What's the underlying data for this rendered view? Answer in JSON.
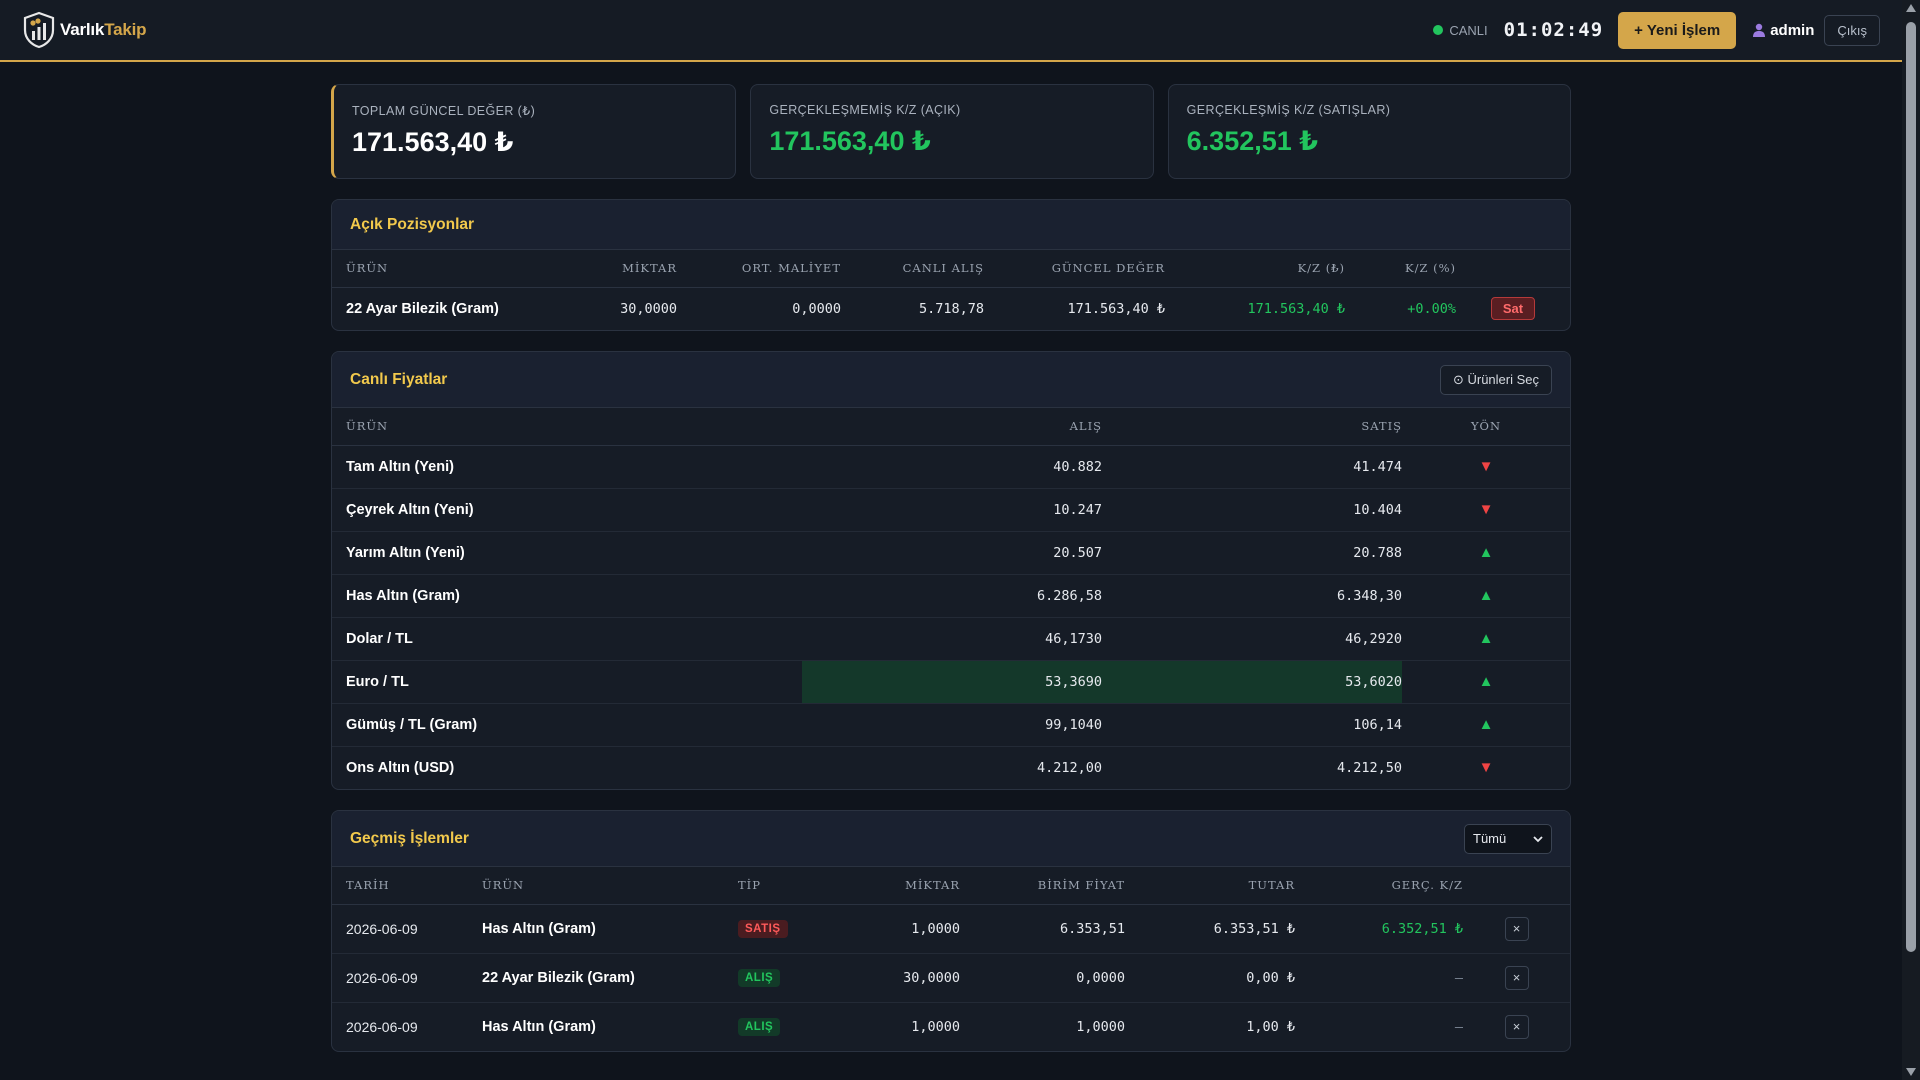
{
  "header": {
    "brand_part1": "Varlık",
    "brand_part2": "Takip",
    "live_label": "CANLI",
    "clock": "01:02:49",
    "new_button": "+ Yeni İşlem",
    "user": "admin",
    "logout": "Çıkış"
  },
  "stats": [
    {
      "label": "TOPLAM GÜNCEL DEĞER (₺)",
      "value": "171.563,40 ₺"
    },
    {
      "label": "GERÇEKLEŞMEMİŞ K/Z (AÇIK)",
      "value": "171.563,40 ₺"
    },
    {
      "label": "GERÇEKLEŞMİŞ K/Z (SATIŞLAR)",
      "value": "6.352,51 ₺"
    }
  ],
  "positions": {
    "title": "Açık Pozisyonlar",
    "columns": [
      "ÜRÜN",
      "MİKTAR",
      "ORT. MALİYET",
      "CANLI ALIŞ",
      "GÜNCEL DEĞER",
      "K/Z (₺)",
      "K/Z (%)"
    ],
    "rows": [
      {
        "product": "22 Ayar Bilezik (Gram)",
        "qty": "30,0000",
        "avg_cost": "0,0000",
        "live_buy": "5.718,78",
        "current": "171.563,40 ₺",
        "pl": "171.563,40 ₺",
        "pl_pct": "+0.00%",
        "action": "Sat"
      }
    ]
  },
  "prices": {
    "title": "Canlı Fiyatlar",
    "select_button": "⊙ Ürünleri Seç",
    "columns": [
      "ÜRÜN",
      "ALIŞ",
      "SATIŞ",
      "YÖN"
    ],
    "rows": [
      {
        "product": "Tam Altın (Yeni)",
        "buy": "40.882",
        "sell": "41.474",
        "dir": "▼"
      },
      {
        "product": "Çeyrek Altın (Yeni)",
        "buy": "10.247",
        "sell": "10.404",
        "dir": "▼"
      },
      {
        "product": "Yarım Altın (Yeni)",
        "buy": "20.507",
        "sell": "20.788",
        "dir": "▲"
      },
      {
        "product": "Has Altın (Gram)",
        "buy": "6.286,58",
        "sell": "6.348,30",
        "dir": "▲"
      },
      {
        "product": "Dolar / TL",
        "buy": "46,1730",
        "sell": "46,2920",
        "dir": "▲"
      },
      {
        "product": "Euro / TL",
        "buy": "53,3690",
        "sell": "53,6020",
        "dir": "▲"
      },
      {
        "product": "Gümüş / TL (Gram)",
        "buy": "99,1040",
        "sell": "106,14",
        "dir": "▲"
      },
      {
        "product": "Ons Altın (USD)",
        "buy": "4.212,00",
        "sell": "4.212,50",
        "dir": "▼"
      }
    ]
  },
  "history": {
    "title": "Geçmiş İşlemler",
    "filter_value": "Tümü",
    "columns": [
      "TARİH",
      "ÜRÜN",
      "TİP",
      "MİKTAR",
      "BİRİM FİYAT",
      "TUTAR",
      "GERÇ. K/Z"
    ],
    "rows": [
      {
        "date": "2026-06-09",
        "product": "Has Altın (Gram)",
        "type": "SATIŞ",
        "qty": "1,0000",
        "unit": "6.353,51",
        "total": "6.353,51 ₺",
        "realized": "6.352,51 ₺",
        "delete": "×"
      },
      {
        "date": "2026-06-09",
        "product": "22 Ayar Bilezik (Gram)",
        "type": "ALIŞ",
        "qty": "30,0000",
        "unit": "0,0000",
        "total": "0,00 ₺",
        "realized": "—",
        "delete": "×"
      },
      {
        "date": "2026-06-09",
        "product": "Has Altın (Gram)",
        "type": "ALIŞ",
        "qty": "1,0000",
        "unit": "1,0000",
        "total": "1,00 ₺",
        "realized": "—",
        "delete": "×"
      }
    ]
  },
  "colors": {
    "accent": "#d4a64a",
    "positive": "#22c55e",
    "negative": "#ef4444",
    "background": "#0f141c"
  }
}
